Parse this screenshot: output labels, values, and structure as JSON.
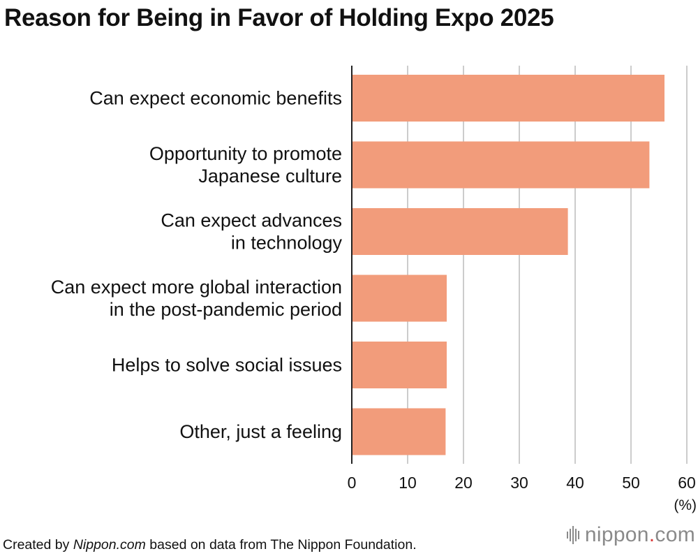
{
  "title": "Reason for Being in Favor of Holding Expo 2025",
  "chart_data": {
    "type": "bar",
    "orientation": "horizontal",
    "title": "Reason for Being in Favor of Holding Expo 2025",
    "categories": [
      [
        "Can expect economic benefits"
      ],
      [
        "Opportunity to promote",
        "Japanese culture"
      ],
      [
        "Can expect advances",
        "in technology"
      ],
      [
        "Can expect more global interaction",
        "in the post-pandemic period"
      ],
      [
        "Helps to solve social issues"
      ],
      [
        "Other, just a feeling"
      ]
    ],
    "values": [
      56,
      53.3,
      38.7,
      17,
      17,
      16.8
    ],
    "xlim": [
      0,
      60
    ],
    "xticks": [
      0,
      10,
      20,
      30,
      40,
      50,
      60
    ],
    "xlabel": "(%)",
    "ylabel": "",
    "grid": true,
    "bar_color": "#f29c7b",
    "grid_color": "#cccccc",
    "axis_color": "#222222"
  },
  "footer": {
    "prefix": "Created by ",
    "site": "Nippon.com",
    "suffix": " based on data from The Nippon Foundation."
  },
  "logo": {
    "name": "nippon",
    "dot": ".",
    "tld": "com",
    "dot_color": "#d93b3b"
  }
}
